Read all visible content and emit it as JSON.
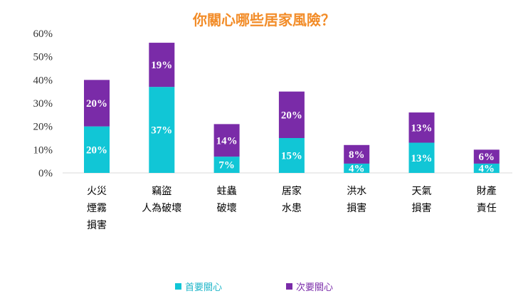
{
  "chart_data": {
    "type": "bar",
    "stacked": true,
    "title": "你關心哪些居家風險？",
    "categories": [
      [
        "火災",
        "煙霧",
        "損害"
      ],
      [
        "竊盜",
        "人為破壞"
      ],
      [
        "蛀蟲",
        "破壞"
      ],
      [
        "居家",
        "水患"
      ],
      [
        "洪水",
        "損害"
      ],
      [
        "天氣",
        "損害"
      ],
      [
        "財產",
        "責任"
      ]
    ],
    "series": [
      {
        "name": "首要關心",
        "values": [
          20,
          37,
          7,
          15,
          4,
          13,
          4
        ],
        "labels": [
          "20%",
          "37%",
          "7%",
          "15%",
          "4%",
          "13%",
          "4%"
        ],
        "color": "#11C6D6"
      },
      {
        "name": "次要關心",
        "values": [
          20,
          19,
          14,
          20,
          8,
          13,
          6
        ],
        "labels": [
          "20%",
          "19%",
          "14%",
          "20%",
          "8%",
          "13%",
          "6%"
        ],
        "color": "#7A2BA8"
      }
    ],
    "yticks": [
      "0%",
      "10%",
      "20%",
      "30%",
      "40%",
      "50%",
      "60%"
    ],
    "ylim": [
      0,
      60
    ],
    "grid": false,
    "legend": "bottom"
  }
}
